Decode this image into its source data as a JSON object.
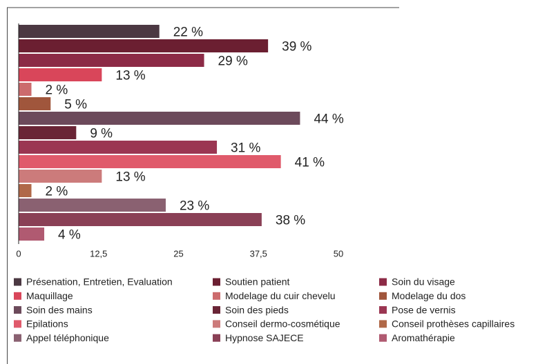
{
  "chart_data": {
    "type": "bar",
    "orientation": "horizontal",
    "xlim": [
      0,
      50
    ],
    "xticks": [
      0,
      {
        "value": 12.5,
        "label": "12,5"
      },
      25,
      {
        "value": 37.5,
        "label": "37,5"
      },
      50
    ],
    "grid": false,
    "legend": "bottom",
    "series": [
      {
        "name": "Présenation, Entretien, Evaluation",
        "color": "#4b3842",
        "values": [
          22
        ],
        "value_labels": [
          "22 %"
        ]
      },
      {
        "name": "Soutien patient",
        "color": "#6b1f31",
        "values": [
          39
        ],
        "value_labels": [
          "39 %"
        ]
      },
      {
        "name": "Soin du visage",
        "color": "#8c2a46",
        "values": [
          29
        ],
        "value_labels": [
          "29 %"
        ]
      },
      {
        "name": "Maquillage",
        "color": "#d9465a",
        "values": [
          13
        ],
        "value_labels": [
          "13 %"
        ]
      },
      {
        "name": "Modelage du cuir chevelu",
        "color": "#cc6b6d",
        "values": [
          2
        ],
        "value_labels": [
          "2 %"
        ]
      },
      {
        "name": "Modelage du dos",
        "color": "#a0563c",
        "values": [
          5
        ],
        "value_labels": [
          "5 %"
        ]
      },
      {
        "name": "Soin des mains",
        "color": "#6c4a5b",
        "values": [
          44
        ],
        "value_labels": [
          "44 %"
        ]
      },
      {
        "name": "Soin des pieds",
        "color": "#6a2536",
        "values": [
          9
        ],
        "value_labels": [
          "9 %"
        ]
      },
      {
        "name": "Pose de vernis",
        "color": "#9b3652",
        "values": [
          31
        ],
        "value_labels": [
          "31 %"
        ]
      },
      {
        "name": "Epilations",
        "color": "#e05a6b",
        "values": [
          41
        ],
        "value_labels": [
          "41 %"
        ]
      },
      {
        "name": "Conseil dermo-cosmétique",
        "color": "#cc7b7b",
        "values": [
          13
        ],
        "value_labels": [
          "13 %"
        ]
      },
      {
        "name": "Conseil prothèses capillaires",
        "color": "#b06848",
        "values": [
          2
        ],
        "value_labels": [
          "2 %"
        ]
      },
      {
        "name": "Appel téléphonique",
        "color": "#8a6171",
        "values": [
          23
        ],
        "value_labels": [
          "23 %"
        ]
      },
      {
        "name": "Hypnose SAJECE",
        "color": "#8a4056",
        "values": [
          38
        ],
        "value_labels": [
          "38 %"
        ]
      },
      {
        "name": "Aromathérapie",
        "color": "#b05a71",
        "values": [
          4
        ],
        "value_labels": [
          "4 %"
        ]
      }
    ]
  }
}
